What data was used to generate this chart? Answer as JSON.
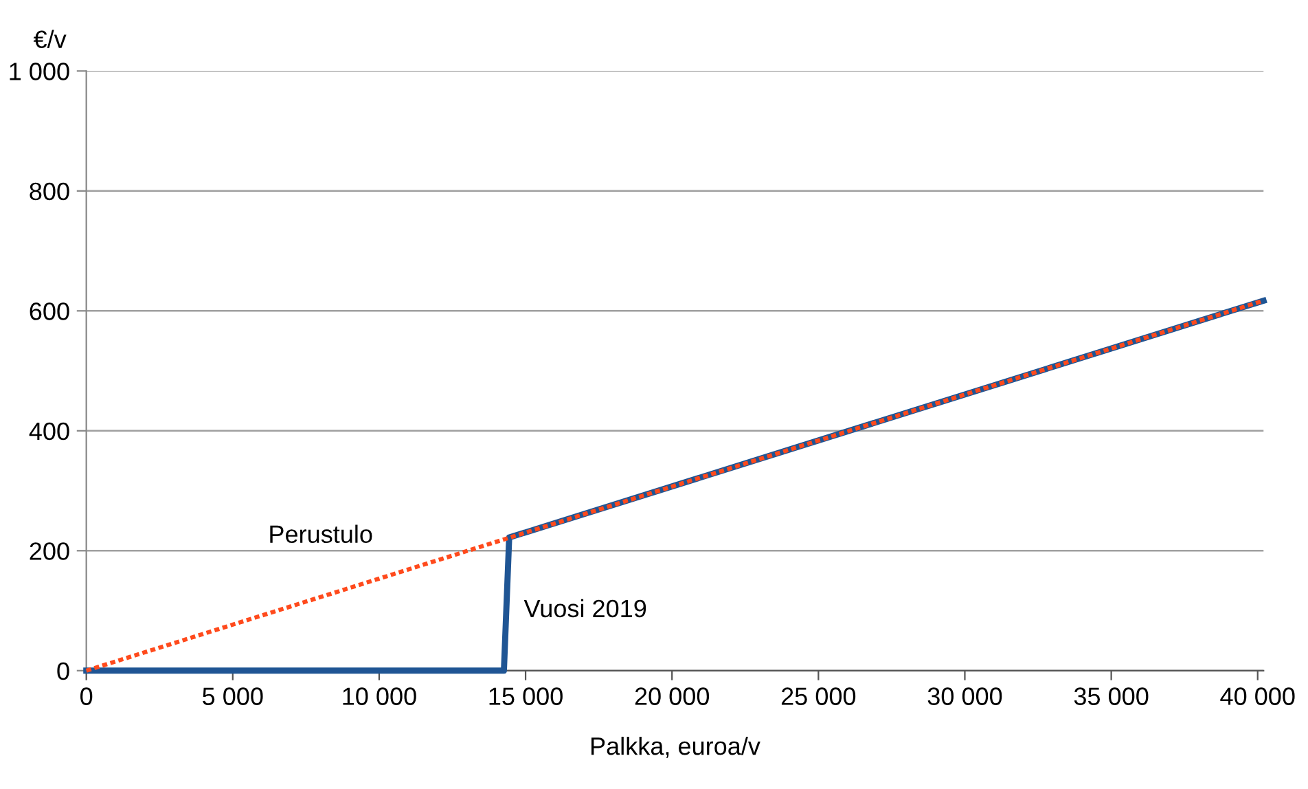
{
  "chart_data": {
    "type": "line",
    "xlabel": "Palkka, euroa/v",
    "ylabel": "€/v",
    "series": [
      {
        "color": "#1f5594",
        "x": [
          0,
          14260,
          14440,
          40200
        ],
        "values": [
          0,
          0,
          222,
          617
        ],
        "line_style": "solid"
      },
      {
        "color": "#ff4a1c",
        "x": [
          0,
          40200
        ],
        "values": [
          0,
          617
        ],
        "line_style": "dotted"
      }
    ],
    "annotations": [
      {
        "text": "Perustulo",
        "x": 10000,
        "y": 154
      },
      {
        "text": "Vuosi 2019",
        "x": 14440,
        "y": 100
      }
    ],
    "xlim": [
      0,
      40200
    ],
    "ylim": [
      0,
      1000
    ],
    "xticks": [
      0,
      {
        "value": 5000,
        "label": "5 000"
      },
      {
        "value": 10000,
        "label": "10 000"
      },
      {
        "value": 15000,
        "label": "15 000"
      },
      {
        "value": 20000,
        "label": "20 000"
      },
      {
        "value": 25000,
        "label": "25 000"
      },
      {
        "value": 30000,
        "label": "30 000"
      },
      {
        "value": 35000,
        "label": "35 000"
      },
      {
        "value": 40000,
        "label": "40 000"
      }
    ],
    "yticks": [
      0,
      200,
      400,
      600,
      800,
      {
        "value": 1000,
        "label": "1 000"
      }
    ],
    "grid": "y",
    "legend": false
  }
}
